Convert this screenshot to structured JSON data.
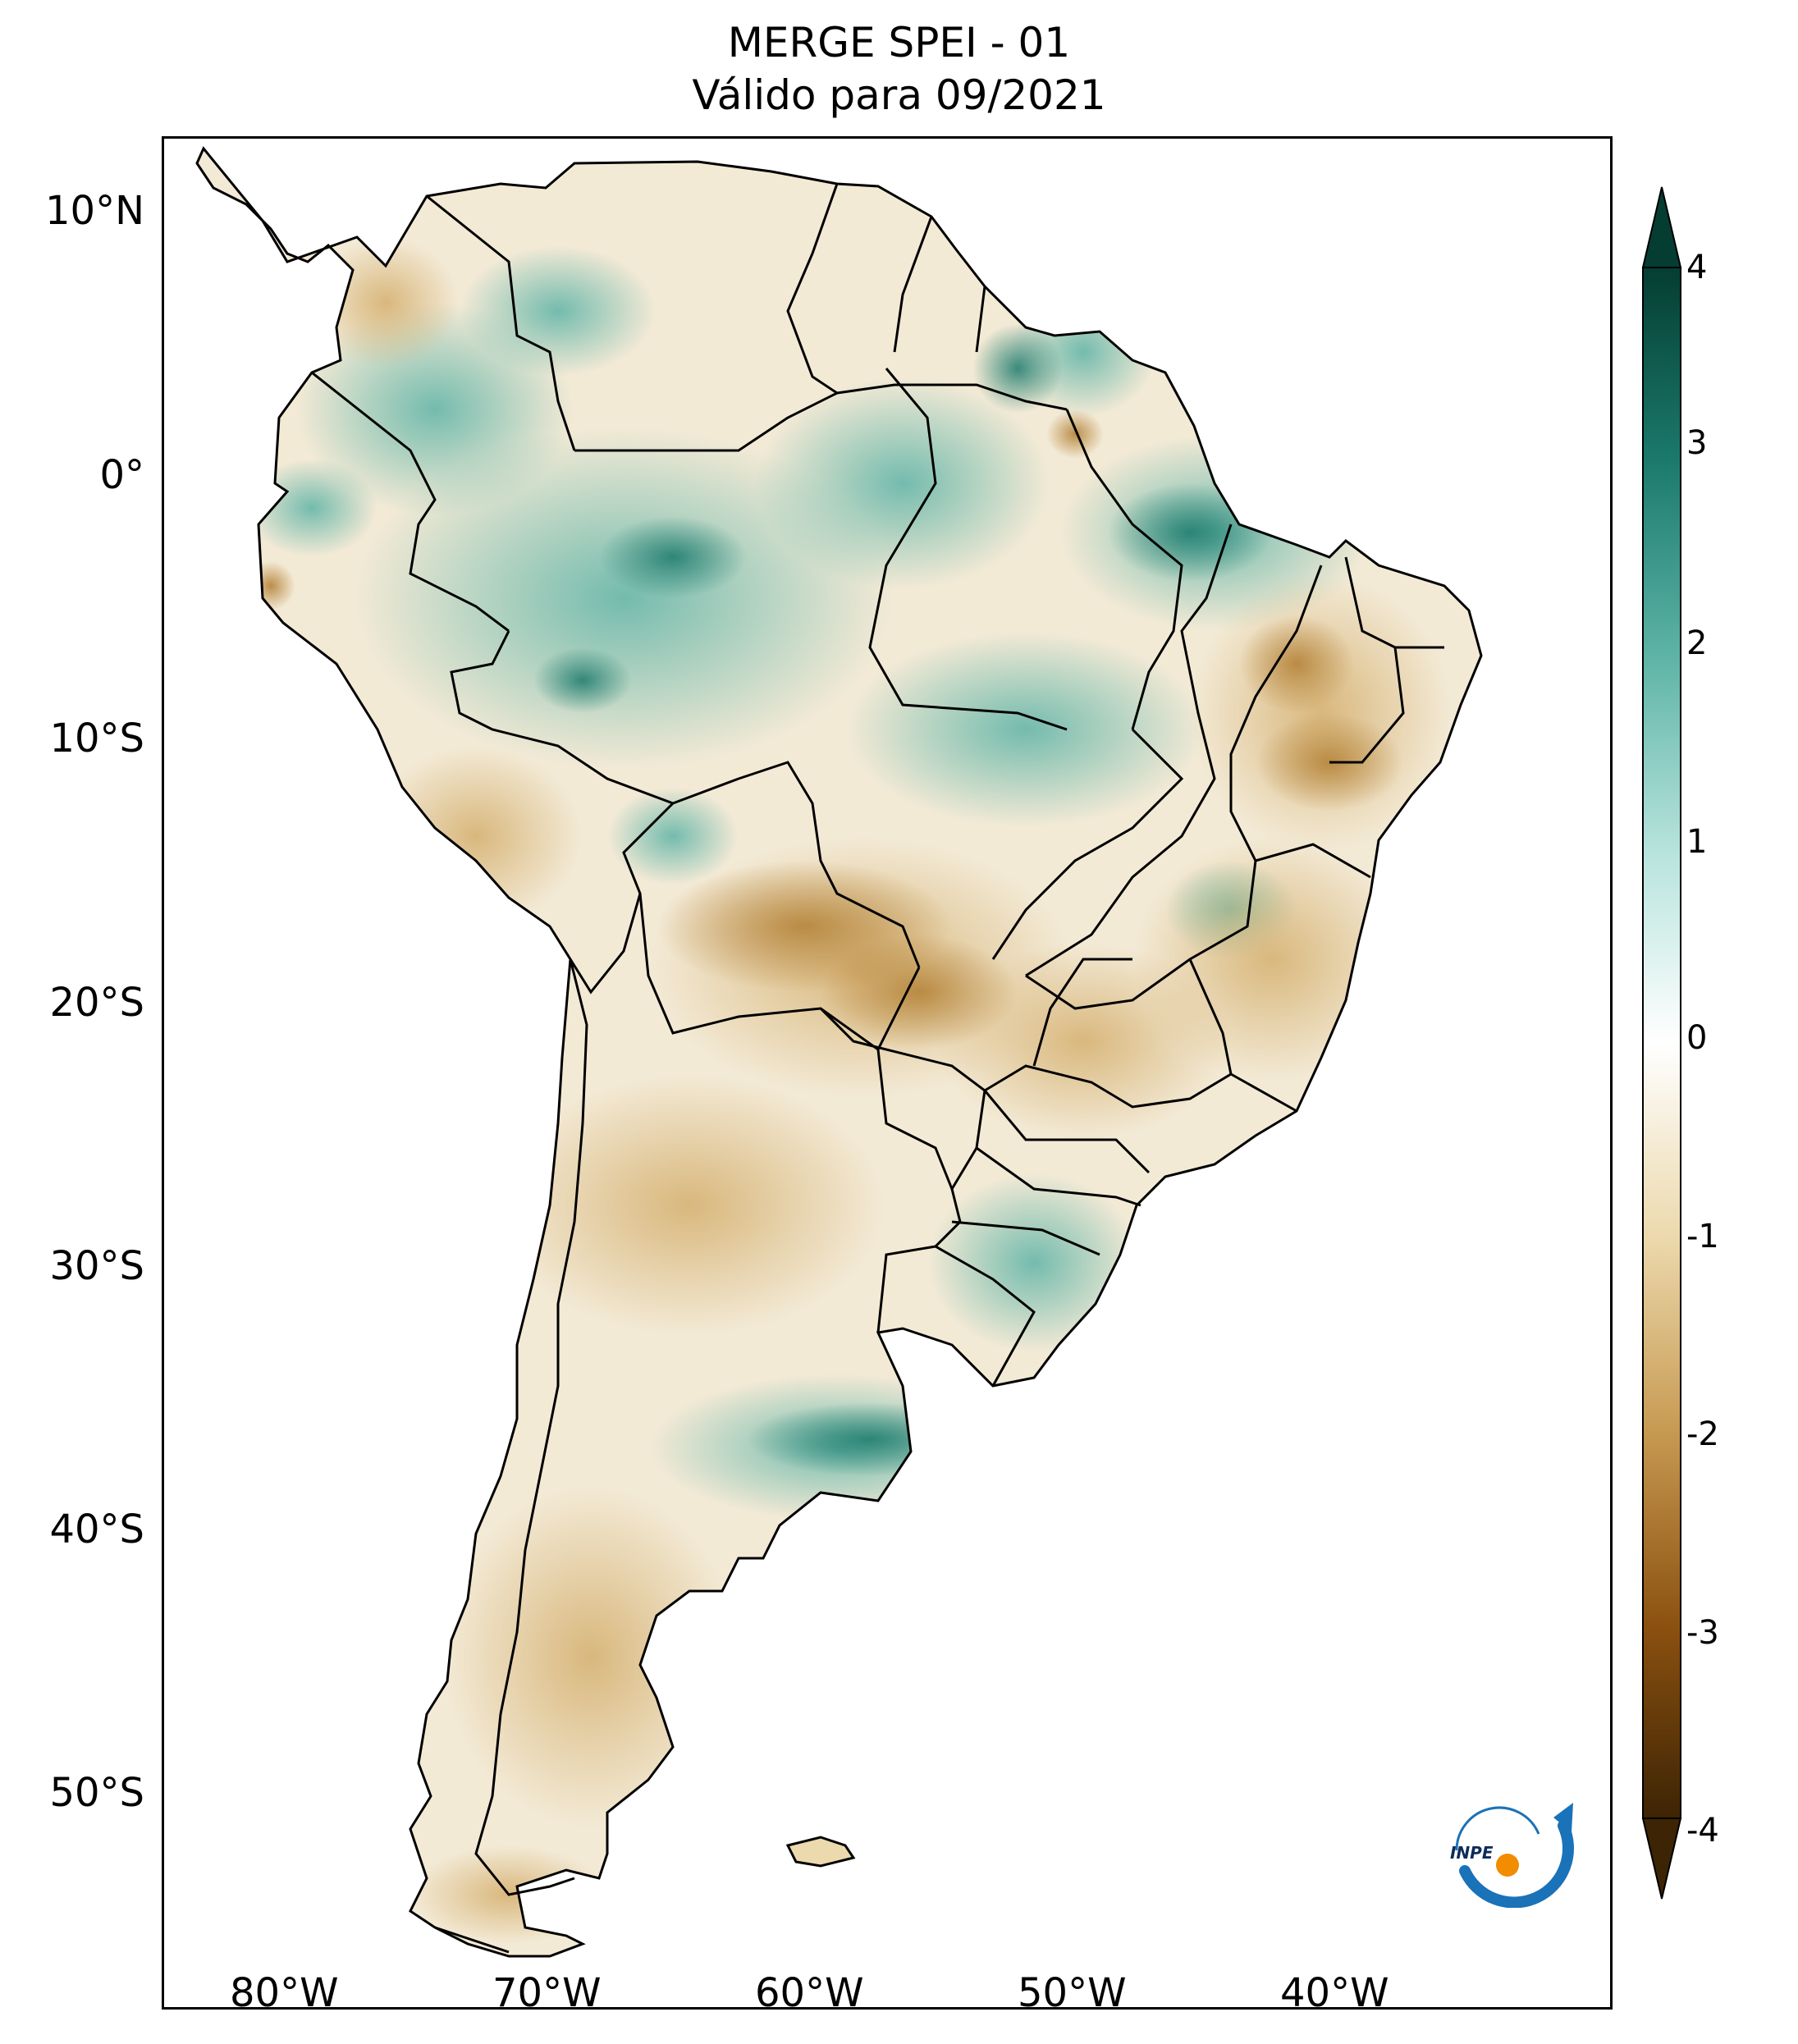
{
  "title": {
    "line1": "MERGE   SPEI - 01",
    "line2": "Válido para 09/2021"
  },
  "map": {
    "region": "South America",
    "variable": "SPEI - 01",
    "lon_range": [
      -85,
      -30
    ],
    "lat_range": [
      -56,
      13
    ],
    "lat_ticks": [
      {
        "value": 10,
        "label": "10°N"
      },
      {
        "value": 0,
        "label": "0°"
      },
      {
        "value": -10,
        "label": "10°S"
      },
      {
        "value": -20,
        "label": "20°S"
      },
      {
        "value": -30,
        "label": "30°S"
      },
      {
        "value": -40,
        "label": "40°S"
      },
      {
        "value": -50,
        "label": "50°S"
      }
    ],
    "lon_ticks": [
      {
        "value": -80,
        "label": "80°W"
      },
      {
        "value": -70,
        "label": "70°W"
      },
      {
        "value": -60,
        "label": "60°W"
      },
      {
        "value": -50,
        "label": "50°W"
      },
      {
        "value": -40,
        "label": "40°W"
      }
    ]
  },
  "colorbar": {
    "range": [
      -4,
      4
    ],
    "labels": [
      "4",
      "3",
      "2",
      "1",
      "0",
      "-1",
      "-2",
      "-3",
      "-4"
    ],
    "colors": [
      "#3d2404",
      "#8c5110",
      "#c79a52",
      "#ecd9ad",
      "#ffffff",
      "#b6e3dc",
      "#5db3a6",
      "#1b7a6c",
      "#053d32"
    ]
  },
  "logo": {
    "text": "INPE",
    "name": "inpe-logo"
  }
}
